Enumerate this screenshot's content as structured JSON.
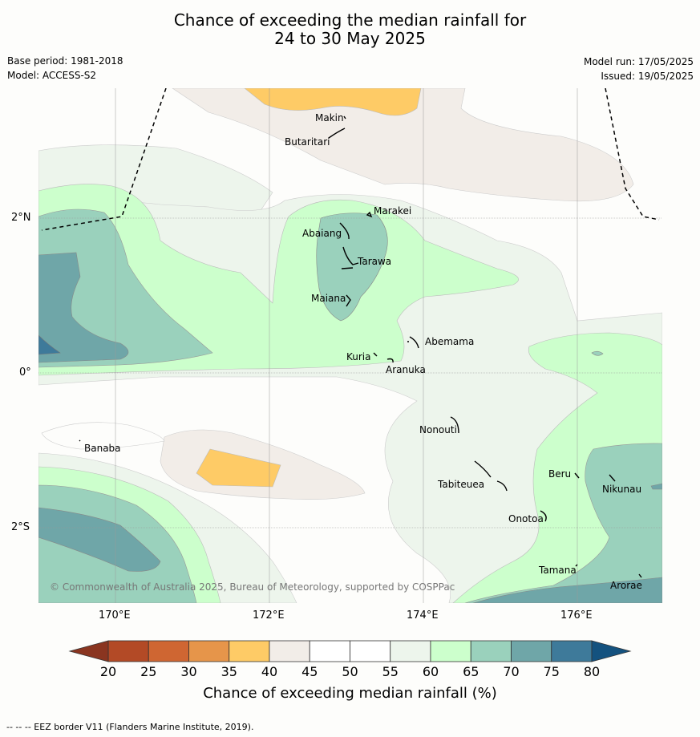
{
  "title_line1": "Chance of exceeding the median rainfall for",
  "title_line2": "24 to 30 May 2025",
  "base_period": "Base period: 1981-2018",
  "model": "Model: ACCESS-S2",
  "model_run": "Model run: 17/05/2025",
  "issued": "Issued: 19/05/2025",
  "lat_ticks": [
    "2°N",
    "0°",
    "2°S"
  ],
  "lon_ticks": [
    "170°E",
    "172°E",
    "174°E",
    "176°E"
  ],
  "places": {
    "makin": "Makin",
    "butaritari": "Butaritari",
    "marakei": "Marakei",
    "abaiang": "Abaiang",
    "tarawa": "Tarawa",
    "maiana": "Maiana",
    "abemama": "Abemama",
    "kuria": "Kuria",
    "aranuka": "Aranuka",
    "nonouti": "Nonouti",
    "banaba": "Banaba",
    "beru": "Beru",
    "tabiteuea": "Tabiteuea",
    "nikunau": "Nikunau",
    "onotoa": "Onotoa",
    "tamana": "Tamana",
    "arorae": "Arorae"
  },
  "copyright": "© Commonwealth of Australia 2025, Bureau of Meteorology, supported by COSPPac",
  "colorbar": {
    "title": "Chance of exceeding median rainfall (%)",
    "ticks": [
      "20",
      "25",
      "30",
      "35",
      "40",
      "45",
      "50",
      "55",
      "60",
      "65",
      "70",
      "75",
      "80"
    ],
    "colors": [
      "#b34a26",
      "#cf6632",
      "#e6954a",
      "#fecb66",
      "#f2ede8",
      "#ffffff",
      "#ffffff",
      "#edf5ec",
      "#ccffcc",
      "#9ad1bc",
      "#6fa6a8",
      "#3e7a9a"
    ],
    "under_color": "#8a3520",
    "over_color": "#14527f"
  },
  "footer": "--  --  -- EEZ border V11 (Flanders Marine Institute, 2019)."
}
